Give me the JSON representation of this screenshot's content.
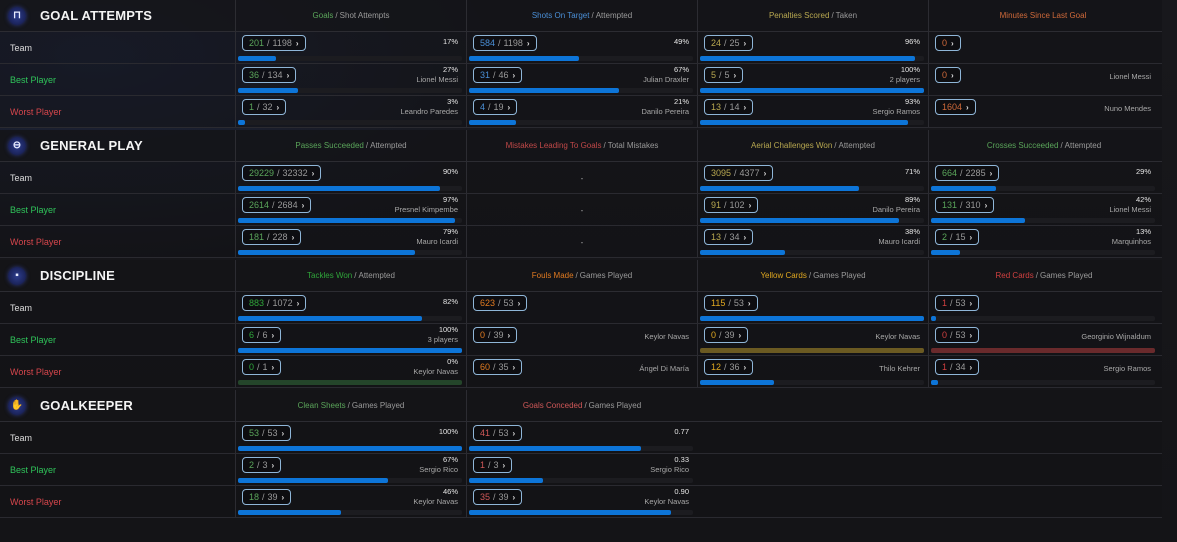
{
  "row_labels": {
    "team": "Team",
    "best": "Best Player",
    "worst": "Worst Player"
  },
  "separator": "/",
  "chevron": "›",
  "sections": [
    {
      "id": "goal-attempts",
      "title": "GOAL ATTEMPTS",
      "icon": "goal-net-icon",
      "icon_glyph": "⊓",
      "columns": [
        {
          "highlight": "Goals",
          "rest": "Shot Attempts",
          "color_class": "c-goals",
          "kind": "ratio",
          "rows": [
            {
              "num": "201",
              "den": "1198",
              "pct": "17%",
              "who": "",
              "fill": 0.17
            },
            {
              "num": "36",
              "den": "134",
              "pct": "27%",
              "who": "Lionel Messi",
              "fill": 0.27
            },
            {
              "num": "1",
              "den": "32",
              "pct": "3%",
              "who": "Leandro Paredes",
              "fill": 0.03
            }
          ]
        },
        {
          "highlight": "Shots On Target",
          "rest": "Attempted",
          "color_class": "c-shots",
          "kind": "ratio",
          "rows": [
            {
              "num": "584",
              "den": "1198",
              "pct": "49%",
              "who": "",
              "fill": 0.49
            },
            {
              "num": "31",
              "den": "46",
              "pct": "67%",
              "who": "Julian Draxler",
              "fill": 0.67
            },
            {
              "num": "4",
              "den": "19",
              "pct": "21%",
              "who": "Danilo Pereira",
              "fill": 0.21
            }
          ]
        },
        {
          "highlight": "Penalties Scored",
          "rest": "Taken",
          "color_class": "c-pens",
          "kind": "ratio",
          "rows": [
            {
              "num": "24",
              "den": "25",
              "pct": "96%",
              "who": "",
              "fill": 0.96
            },
            {
              "num": "5",
              "den": "5",
              "pct": "100%",
              "who": "2 players",
              "fill": 1.0
            },
            {
              "num": "13",
              "den": "14",
              "pct": "93%",
              "who": "Sergio Ramos",
              "fill": 0.93
            }
          ]
        },
        {
          "highlight": "Minutes Since Last Goal",
          "rest": "",
          "color_class": "c-mins",
          "kind": "single",
          "rows": [
            {
              "num": "0",
              "who": ""
            },
            {
              "num": "0",
              "who": "Lionel Messi"
            },
            {
              "num": "1604",
              "who": "Nuno Mendes"
            }
          ]
        }
      ]
    },
    {
      "id": "general-play",
      "title": "GENERAL PLAY",
      "icon": "ball-target-icon",
      "icon_glyph": "⊖",
      "columns": [
        {
          "highlight": "Passes Succeeded",
          "rest": "Attempted",
          "color_class": "c-pass",
          "kind": "ratio",
          "rows": [
            {
              "num": "29229",
              "den": "32332",
              "pct": "90%",
              "who": "",
              "fill": 0.9
            },
            {
              "num": "2614",
              "den": "2684",
              "pct": "97%",
              "who": "Presnel Kimpembe",
              "fill": 0.97
            },
            {
              "num": "181",
              "den": "228",
              "pct": "79%",
              "who": "Mauro Icardi",
              "fill": 0.79
            }
          ]
        },
        {
          "highlight": "Mistakes Leading To Goals",
          "rest": "Total Mistakes",
          "color_class": "c-mist",
          "kind": "dash",
          "rows": [
            {
              "text": "-"
            },
            {
              "text": "-"
            },
            {
              "text": "-"
            }
          ]
        },
        {
          "highlight": "Aerial Challenges Won",
          "rest": "Attempted",
          "color_class": "c-aer",
          "kind": "ratio",
          "rows": [
            {
              "num": "3095",
              "den": "4377",
              "pct": "71%",
              "who": "",
              "fill": 0.71
            },
            {
              "num": "91",
              "den": "102",
              "pct": "89%",
              "who": "Danilo Pereira",
              "fill": 0.89
            },
            {
              "num": "13",
              "den": "34",
              "pct": "38%",
              "who": "Mauro Icardi",
              "fill": 0.38
            }
          ]
        },
        {
          "highlight": "Crosses Succeeded",
          "rest": "Attempted",
          "color_class": "c-cross",
          "kind": "ratio",
          "rows": [
            {
              "num": "664",
              "den": "2285",
              "pct": "29%",
              "who": "",
              "fill": 0.29
            },
            {
              "num": "131",
              "den": "310",
              "pct": "42%",
              "who": "Lionel Messi",
              "fill": 0.42
            },
            {
              "num": "2",
              "den": "15",
              "pct": "13%",
              "who": "Marquinhos",
              "fill": 0.13
            }
          ]
        }
      ]
    },
    {
      "id": "discipline",
      "title": "DISCIPLINE",
      "icon": "card-icon",
      "icon_glyph": "▪",
      "columns": [
        {
          "highlight": "Tackles Won",
          "rest": "Attempted",
          "color_class": "c-tack",
          "kind": "ratio",
          "rows": [
            {
              "num": "883",
              "den": "1072",
              "pct": "82%",
              "who": "",
              "fill": 0.82
            },
            {
              "num": "6",
              "den": "6",
              "pct": "100%",
              "who": "3 players",
              "fill": 1.0
            },
            {
              "num": "0",
              "den": "1",
              "pct": "0%",
              "who": "Keylor Navas",
              "fill": 0.0,
              "track_color": "#24452a"
            }
          ]
        },
        {
          "highlight": "Fouls Made",
          "rest": "Games Played",
          "color_class": "c-fouls",
          "kind": "ratio-nobar",
          "rows": [
            {
              "num": "623",
              "den": "53",
              "who": ""
            },
            {
              "num": "0",
              "den": "39",
              "who": "Keylor Navas"
            },
            {
              "num": "60",
              "den": "35",
              "who": "Ángel Di María"
            }
          ]
        },
        {
          "highlight": "Yellow Cards",
          "rest": "Games Played",
          "color_class": "c-yel",
          "kind": "ratio-nopct",
          "rows": [
            {
              "num": "115",
              "den": "53",
              "who": "",
              "fill": 1.0
            },
            {
              "num": "0",
              "den": "39",
              "who": "Keylor Navas",
              "fill": 0.0,
              "track_color": "#6b5a22"
            },
            {
              "num": "12",
              "den": "36",
              "who": "Thilo Kehrer",
              "fill": 0.33
            }
          ]
        },
        {
          "highlight": "Red Cards",
          "rest": "Games Played",
          "color_class": "c-red",
          "kind": "ratio-nopct",
          "rows": [
            {
              "num": "1",
              "den": "53",
              "who": "",
              "fill": 0.02
            },
            {
              "num": "0",
              "den": "53",
              "who": "Georginio Wijnaldum",
              "fill": 0.0,
              "track_color": "#6a2a2c"
            },
            {
              "num": "1",
              "den": "34",
              "who": "Sergio Ramos",
              "fill": 0.03
            }
          ]
        }
      ]
    },
    {
      "id": "goalkeeper",
      "title": "GOALKEEPER",
      "icon": "glove-icon",
      "icon_glyph": "✋",
      "columns": [
        {
          "highlight": "Clean Sheets",
          "rest": "Games Played",
          "color_class": "c-cs",
          "kind": "ratio",
          "rows": [
            {
              "num": "53",
              "den": "53",
              "pct": "100%",
              "who": "",
              "fill": 1.0
            },
            {
              "num": "2",
              "den": "3",
              "pct": "67%",
              "who": "Sergio Rico",
              "fill": 0.67
            },
            {
              "num": "18",
              "den": "39",
              "pct": "46%",
              "who": "Keylor Navas",
              "fill": 0.46
            }
          ]
        },
        {
          "highlight": "Goals Conceded",
          "rest": "Games Played",
          "color_class": "c-gc",
          "kind": "ratio",
          "rows": [
            {
              "num": "41",
              "den": "53",
              "pct": "0.77",
              "who": "",
              "fill": 0.77
            },
            {
              "num": "1",
              "den": "3",
              "pct": "0.33",
              "who": "Sergio Rico",
              "fill": 0.33
            },
            {
              "num": "35",
              "den": "39",
              "pct": "0.90",
              "who": "Keylor Navas",
              "fill": 0.9
            }
          ]
        }
      ]
    }
  ]
}
